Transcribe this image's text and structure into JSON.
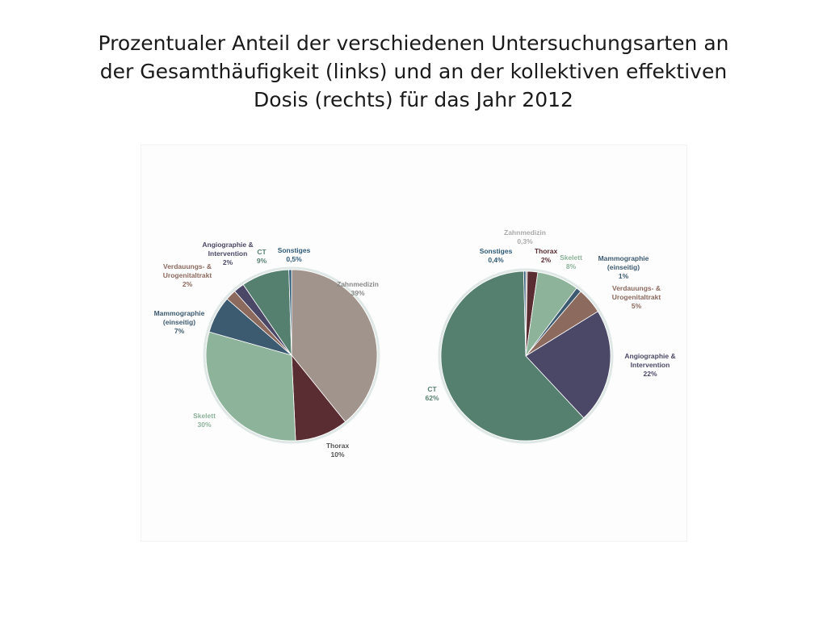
{
  "title": {
    "line1": "Prozentualer Anteil der verschiedenen Untersuchungsarten an",
    "line2": "der Gesamthäufigkeit (links) und an der kollektiven effektiven",
    "line3": "Dosis (rechts) für das Jahr 2012"
  },
  "colors": {
    "Zahnmedizin": "#a0948c",
    "Thorax": "#5a2d32",
    "Skelett": "#8db39a",
    "Mammographie (einseitig)": "#3c5a70",
    "Verdauungs- & Urogenitaltrakt": "#8c6a5e",
    "Angiographie & Intervention": "#4a4866",
    "CT": "#558070",
    "Sonstiges": "#2e5a78"
  },
  "chart_data": [
    {
      "type": "pie",
      "title": "",
      "slices": [
        {
          "name": "Zahnmedizin",
          "value": 39,
          "label_lines": [
            "Zahnmedizin",
            "39%"
          ]
        },
        {
          "name": "Thorax",
          "value": 10,
          "label_lines": [
            "Thorax",
            "10%"
          ]
        },
        {
          "name": "Skelett",
          "value": 30,
          "label_lines": [
            "Skelett",
            "30%"
          ]
        },
        {
          "name": "Mammographie (einseitig)",
          "value": 7,
          "label_lines": [
            "Mammographie",
            "(einseitig)",
            "7%"
          ]
        },
        {
          "name": "Verdauungs- & Urogenitaltrakt",
          "value": 2,
          "label_lines": [
            "Verdauungs- &",
            "Urogenitaltrakt",
            "2%"
          ]
        },
        {
          "name": "Angiographie & Intervention",
          "value": 2,
          "label_lines": [
            "Angiographie &",
            "Intervention",
            "2%"
          ]
        },
        {
          "name": "CT",
          "value": 9,
          "label_lines": [
            "CT",
            "9%"
          ]
        },
        {
          "name": "Sonstiges",
          "value": 0.5,
          "label_lines": [
            "Sonstiges",
            "0,5%"
          ]
        }
      ]
    },
    {
      "type": "pie",
      "title": "",
      "slices": [
        {
          "name": "Zahnmedizin",
          "value": 0.3,
          "label_lines": [
            "Zahnmedizin",
            "0,3%"
          ]
        },
        {
          "name": "Thorax",
          "value": 2,
          "label_lines": [
            "Thorax",
            "2%"
          ]
        },
        {
          "name": "Skelett",
          "value": 8,
          "label_lines": [
            "Skelett",
            "8%"
          ]
        },
        {
          "name": "Mammographie (einseitig)",
          "value": 1,
          "label_lines": [
            "Mammographie",
            "(einseitig)",
            "1%"
          ]
        },
        {
          "name": "Verdauungs- & Urogenitaltrakt",
          "value": 5,
          "label_lines": [
            "Verdauungs- &",
            "Urogenitaltrakt",
            "5%"
          ]
        },
        {
          "name": "Angiographie & Intervention",
          "value": 22,
          "label_lines": [
            "Angiographie &",
            "Intervention",
            "22%"
          ]
        },
        {
          "name": "CT",
          "value": 62,
          "label_lines": [
            "CT",
            "62%"
          ]
        },
        {
          "name": "Sonstiges",
          "value": 0.4,
          "label_lines": [
            "Sonstiges",
            "0,4%"
          ]
        }
      ]
    }
  ]
}
